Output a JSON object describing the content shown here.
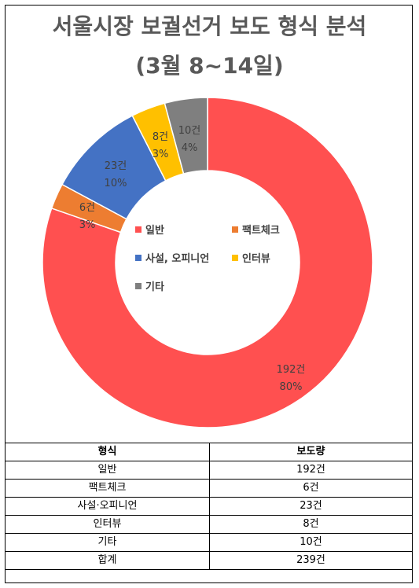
{
  "chart_data": {
    "type": "pie",
    "title": "서울시장 보궐선거 보도 형식 분석",
    "subtitle": "(3월 8~14일)",
    "categories": [
      "일반",
      "팩트체크",
      "사설, 오피니언",
      "인터뷰",
      "기타"
    ],
    "values": [
      192,
      6,
      23,
      8,
      10
    ],
    "data_labels": [
      {
        "count": "192건",
        "percent": "80%"
      },
      {
        "count": "6건",
        "percent": "3%"
      },
      {
        "count": "23건",
        "percent": "10%"
      },
      {
        "count": "8건",
        "percent": "3%"
      },
      {
        "count": "10건",
        "percent": "4%"
      }
    ],
    "colors": [
      "#FF5050",
      "#ED7D31",
      "#4472C4",
      "#FFC000",
      "#7F7F7F"
    ],
    "legend_position": "center",
    "donut": true
  },
  "table": {
    "headers": [
      "형식",
      "보도량"
    ],
    "rows": [
      [
        "일반",
        "192건"
      ],
      [
        "팩트체크",
        "6건"
      ],
      [
        "사설·오피니언",
        "23건"
      ],
      [
        "인터뷰",
        "8건"
      ],
      [
        "기타",
        "10건"
      ],
      [
        "합계",
        "239건"
      ]
    ]
  }
}
